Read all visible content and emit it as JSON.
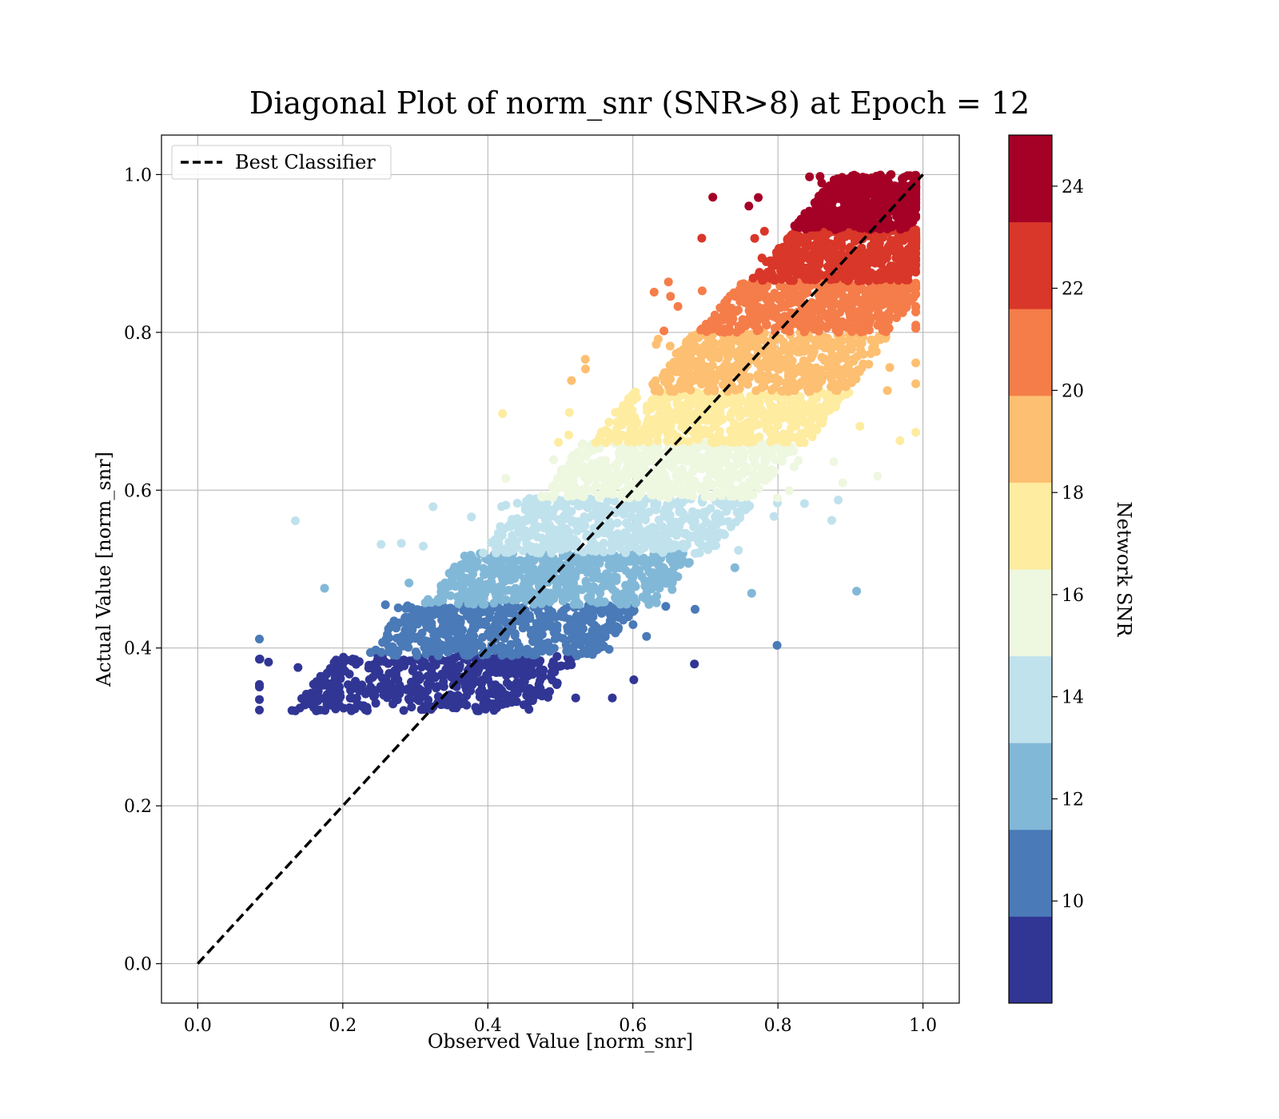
{
  "chart_data": {
    "type": "scatter",
    "title": "Diagonal Plot of norm_snr (SNR>8) at Epoch = 12",
    "xlabel": "Observed Value [norm_snr]",
    "ylabel": "Actual Value [norm_snr]",
    "xlim": [
      -0.05,
      1.05
    ],
    "ylim": [
      -0.05,
      1.05
    ],
    "xticks": [
      "0.0",
      "0.2",
      "0.4",
      "0.6",
      "0.8",
      "1.0"
    ],
    "yticks": [
      "0.0",
      "0.2",
      "0.4",
      "0.6",
      "0.8",
      "1.0"
    ],
    "grid": true,
    "legend": {
      "placement": "top-left",
      "entries": [
        "Best Classifier"
      ]
    },
    "reference_line": {
      "name": "Best Classifier",
      "style": "dashed",
      "color": "#000000",
      "x": [
        0,
        1
      ],
      "y": [
        0,
        1
      ]
    },
    "colorbar": {
      "label": "Network SNR",
      "range": [
        8,
        25
      ],
      "ticks": [
        "10",
        "12",
        "14",
        "16",
        "18",
        "20",
        "22",
        "24"
      ],
      "bins": [
        {
          "snr_min": 8,
          "snr_max": 9.7,
          "color": "#313695"
        },
        {
          "snr_min": 9.7,
          "snr_max": 11.4,
          "color": "#4a7ab7"
        },
        {
          "snr_min": 11.4,
          "snr_max": 13.1,
          "color": "#82b8d7"
        },
        {
          "snr_min": 13.1,
          "snr_max": 14.8,
          "color": "#c0e2ed"
        },
        {
          "snr_min": 14.8,
          "snr_max": 16.5,
          "color": "#eef7e0"
        },
        {
          "snr_min": 16.5,
          "snr_max": 18.2,
          "color": "#feeca0"
        },
        {
          "snr_min": 18.2,
          "snr_max": 19.9,
          "color": "#fdbf71"
        },
        {
          "snr_min": 19.9,
          "snr_max": 21.6,
          "color": "#f57d4a"
        },
        {
          "snr_min": 21.6,
          "snr_max": 23.3,
          "color": "#d93729"
        },
        {
          "snr_min": 23.3,
          "snr_max": 25,
          "color": "#a50026"
        }
      ]
    },
    "bands": [
      {
        "y_range": [
          0.32,
          0.39
        ],
        "x_center_at_mid": 0.33,
        "x_spread": 0.17,
        "color": "#313695"
      },
      {
        "y_range": [
          0.39,
          0.455
        ],
        "x_center_at_mid": 0.42,
        "x_spread": 0.16,
        "color": "#4a7ab7"
      },
      {
        "y_range": [
          0.455,
          0.52
        ],
        "x_center_at_mid": 0.5,
        "x_spread": 0.16,
        "color": "#82b8d7"
      },
      {
        "y_range": [
          0.52,
          0.59
        ],
        "x_center_at_mid": 0.58,
        "x_spread": 0.16,
        "color": "#c0e2ed"
      },
      {
        "y_range": [
          0.59,
          0.66
        ],
        "x_center_at_mid": 0.65,
        "x_spread": 0.15,
        "color": "#eef7e0"
      },
      {
        "y_range": [
          0.66,
          0.725
        ],
        "x_center_at_mid": 0.72,
        "x_spread": 0.15,
        "color": "#feeca0"
      },
      {
        "y_range": [
          0.725,
          0.8
        ],
        "x_center_at_mid": 0.79,
        "x_spread": 0.14,
        "color": "#fdbf71"
      },
      {
        "y_range": [
          0.8,
          0.865
        ],
        "x_center_at_mid": 0.85,
        "x_spread": 0.13,
        "color": "#f57d4a"
      },
      {
        "y_range": [
          0.865,
          0.93
        ],
        "x_center_at_mid": 0.9,
        "x_spread": 0.11,
        "color": "#d93729"
      },
      {
        "y_range": [
          0.93,
          1.0
        ],
        "x_center_at_mid": 0.93,
        "x_spread": 0.08,
        "color": "#a50026"
      }
    ]
  }
}
